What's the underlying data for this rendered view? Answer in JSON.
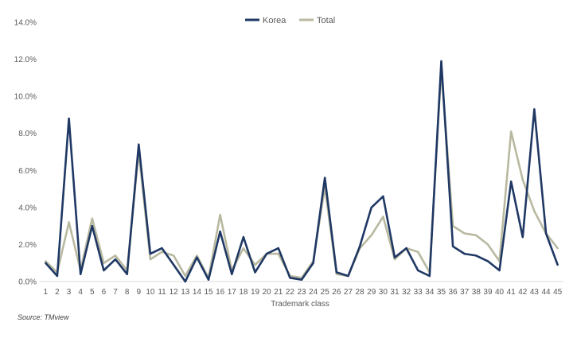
{
  "chart_data": {
    "type": "line",
    "xlabel": "Trademark class",
    "ylabel": "",
    "ylim": [
      0,
      14
    ],
    "yticks": [
      "0.0%",
      "2.0%",
      "4.0%",
      "6.0%",
      "8.0%",
      "10.0%",
      "12.0%",
      "14.0%"
    ],
    "categories": [
      "1",
      "2",
      "3",
      "4",
      "5",
      "6",
      "7",
      "8",
      "9",
      "10",
      "11",
      "12",
      "13",
      "14",
      "15",
      "16",
      "17",
      "18",
      "19",
      "20",
      "21",
      "22",
      "23",
      "24",
      "25",
      "26",
      "27",
      "28",
      "29",
      "30",
      "31",
      "32",
      "33",
      "34",
      "35",
      "36",
      "37",
      "38",
      "39",
      "40",
      "41",
      "42",
      "43",
      "44",
      "45"
    ],
    "legend_position": "top-center",
    "grid": false,
    "series": [
      {
        "name": "Korea",
        "color": "#1f3864",
        "values": [
          1.0,
          0.3,
          8.8,
          0.4,
          3.0,
          0.6,
          1.2,
          0.4,
          7.4,
          1.5,
          1.8,
          0.9,
          0.0,
          1.3,
          0.1,
          2.7,
          0.4,
          2.4,
          0.5,
          1.5,
          1.8,
          0.2,
          0.1,
          1.0,
          5.6,
          0.5,
          0.3,
          1.9,
          4.0,
          4.6,
          1.3,
          1.8,
          0.6,
          0.3,
          11.9,
          1.9,
          1.5,
          1.4,
          1.1,
          0.6,
          5.4,
          2.4,
          9.3,
          2.6,
          0.9
        ]
      },
      {
        "name": "Total",
        "color": "#b9b9a1",
        "values": [
          1.1,
          0.5,
          3.2,
          0.6,
          3.4,
          1.0,
          1.4,
          0.6,
          7.0,
          1.2,
          1.6,
          1.4,
          0.3,
          1.4,
          0.2,
          3.6,
          0.6,
          1.8,
          0.9,
          1.5,
          1.5,
          0.3,
          0.2,
          1.1,
          5.1,
          0.4,
          0.3,
          1.8,
          2.5,
          3.5,
          1.2,
          1.8,
          1.6,
          0.5,
          11.5,
          3.0,
          2.6,
          2.5,
          2.0,
          1.1,
          8.1,
          5.5,
          3.8,
          2.6,
          1.8
        ]
      }
    ]
  },
  "source_text": "Source: TMview"
}
